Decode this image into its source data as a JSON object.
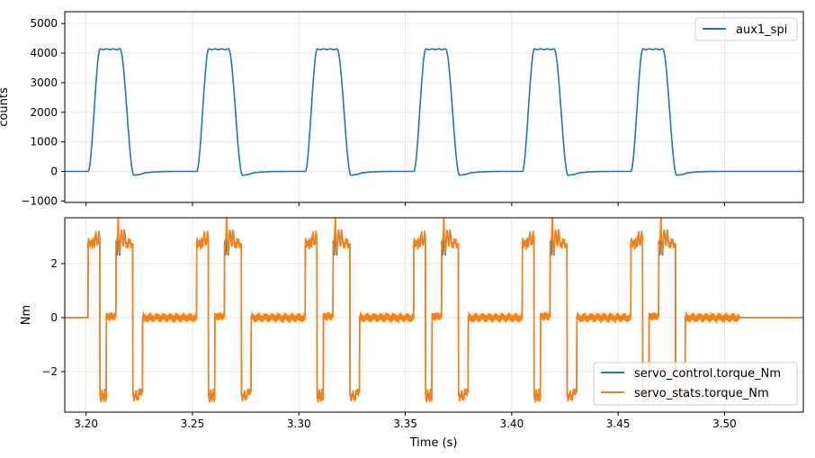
{
  "chart_data": [
    {
      "type": "line",
      "ylabel": "counts",
      "xlim": [
        3.19,
        3.537
      ],
      "ylim": [
        -1050,
        5400
      ],
      "yticks": [
        -1000,
        0,
        1000,
        2000,
        3000,
        4000,
        5000
      ],
      "ytick_labels": [
        "−1000",
        "0",
        "1000",
        "2000",
        "3000",
        "4000",
        "5000"
      ],
      "xticks": [
        3.2,
        3.25,
        3.3,
        3.35,
        3.4,
        3.45,
        3.5
      ],
      "grid": true,
      "legend": "top-right",
      "series": [
        {
          "name": "aux1_spi",
          "color": "#1f77b4",
          "pulse_starts": [
            3.201,
            3.252,
            3.303,
            3.354,
            3.405,
            3.456
          ],
          "pulse_period": 0.051,
          "high": 4130,
          "undershoot": -130,
          "baseline": 0
        }
      ]
    },
    {
      "type": "line",
      "ylabel": "Nm",
      "xlabel": "Time (s)",
      "xlim": [
        3.19,
        3.537
      ],
      "ylim": [
        -3.5,
        3.7
      ],
      "yticks": [
        -2,
        0,
        2
      ],
      "ytick_labels": [
        "−2",
        "0",
        "2"
      ],
      "xticks": [
        3.2,
        3.25,
        3.3,
        3.35,
        3.4,
        3.45,
        3.5
      ],
      "xtick_labels": [
        "3.20",
        "3.25",
        "3.30",
        "3.35",
        "3.40",
        "3.45",
        "3.50"
      ],
      "grid": true,
      "legend": "bottom-right",
      "series": [
        {
          "name": "servo_control.torque_Nm",
          "color": "#1f77b4"
        },
        {
          "name": "servo_stats.torque_Nm",
          "color": "#ff7f0e"
        }
      ]
    }
  ]
}
